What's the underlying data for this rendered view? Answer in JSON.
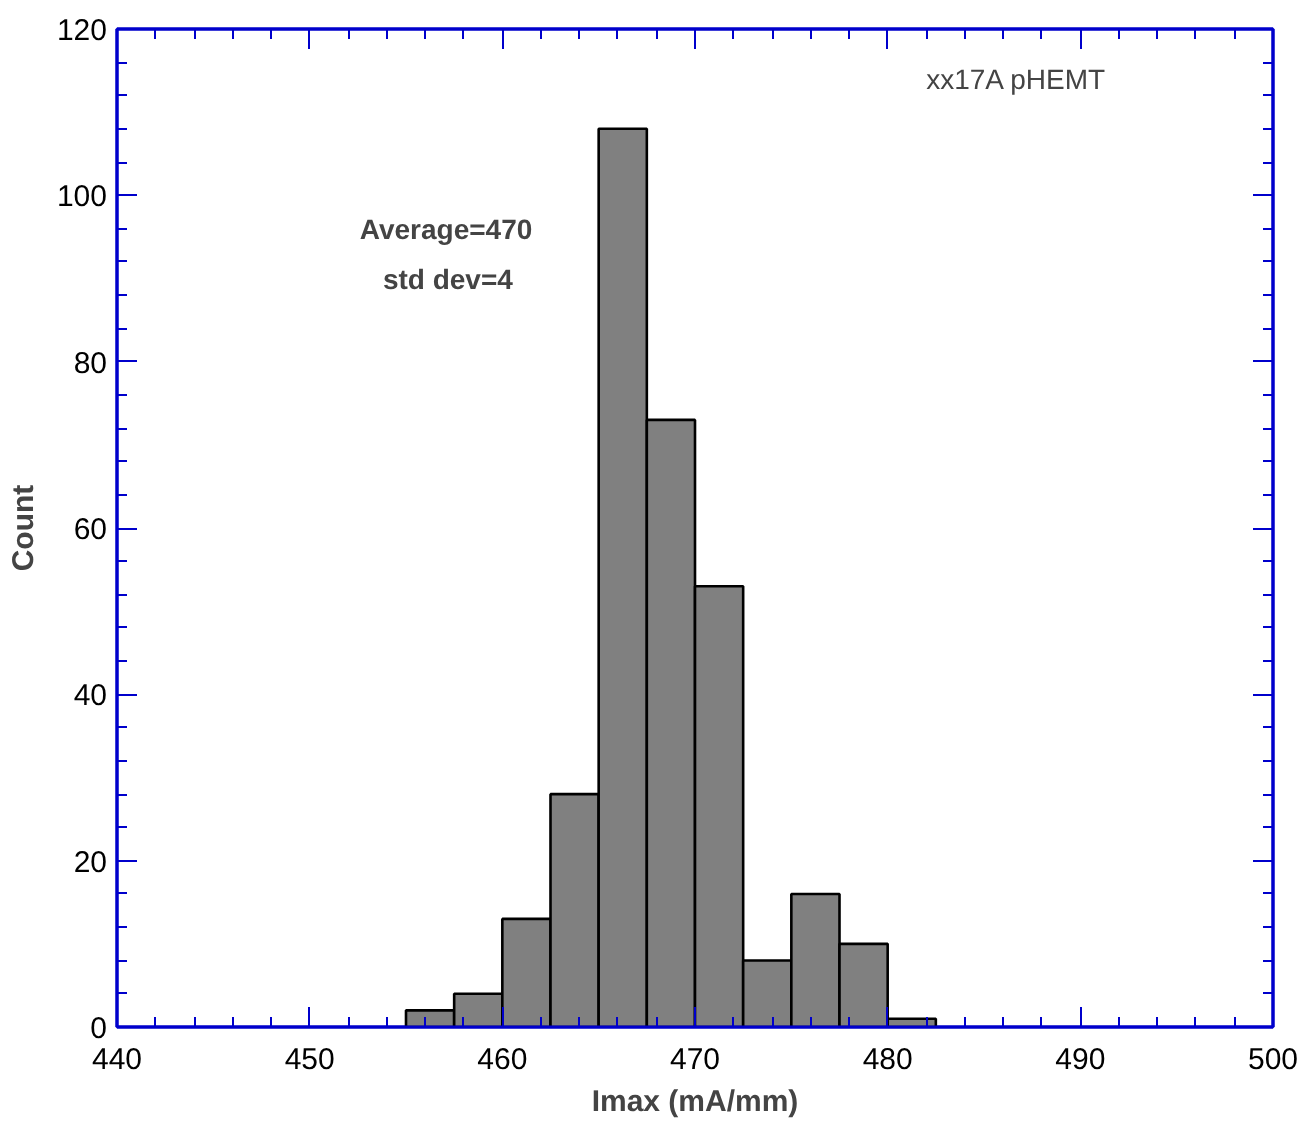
{
  "chart_data": {
    "type": "histogram",
    "xlabel": "Imax (mA/mm)",
    "ylabel": "Count",
    "bins": [
      455,
      457.5,
      460,
      462.5,
      465,
      467.5,
      470,
      472.5,
      475,
      477.5,
      480,
      482.5
    ],
    "values": [
      2,
      4,
      13,
      28,
      108,
      73,
      53,
      8,
      16,
      10,
      1
    ],
    "color": "#808080",
    "xlim": [
      440,
      500
    ],
    "xticks": [
      440,
      450,
      460,
      470,
      480,
      490,
      500
    ],
    "ylim": [
      0,
      120
    ],
    "yticks": [
      0,
      20,
      40,
      60,
      80,
      100,
      120
    ],
    "grid": false,
    "annotations": [
      "xx17A pHEMT",
      "Average=470",
      "std dev=4"
    ]
  }
}
